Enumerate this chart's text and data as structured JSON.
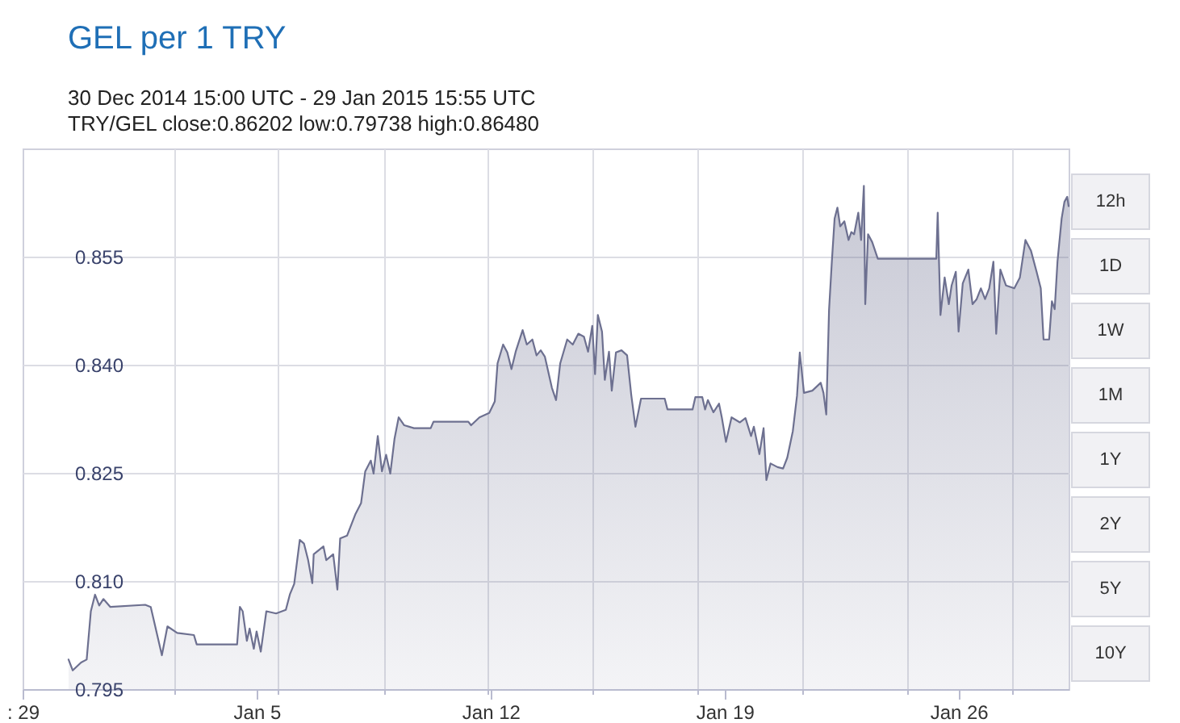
{
  "chart_data": {
    "type": "area",
    "title": "GEL per 1 TRY",
    "subtitle": "30 Dec 2014 15:00 UTC - 29 Jan 2015 15:55 UTC",
    "annotations": [
      "TRY/GEL close:0.86202 low:0.79738 high:0.86480",
      "12h",
      "1D",
      "1W",
      "1M",
      "1Y",
      "2Y",
      "5Y",
      "10Y"
    ],
    "x": [
      "2014-12-30T09:00",
      "2014-12-30T12:00",
      "2014-12-30T18:00",
      "2014-12-30T22:00",
      "2014-12-31T01:00",
      "2014-12-31T04:00",
      "2014-12-31T07:00",
      "2014-12-31T10:00",
      "2014-12-31T15:00",
      "2015-01-01T16:00",
      "2015-01-01T20:00",
      "2015-01-02T04:00",
      "2015-01-02T08:00",
      "2015-01-02T15:00",
      "2015-01-03T03:00",
      "2015-01-03T05:00",
      "2015-01-04T10:00",
      "2015-01-04T12:00",
      "2015-01-04T14:00",
      "2015-01-04T17:00",
      "2015-01-04T19:00",
      "2015-01-04T22:00",
      "2015-01-05T00:00",
      "2015-01-05T03:00",
      "2015-01-05T07:00",
      "2015-01-05T14:00",
      "2015-01-05T21:00",
      "2015-01-06T00:00",
      "2015-01-06T03:00",
      "2015-01-06T07:00",
      "2015-01-06T10:00",
      "2015-01-06T13:00",
      "2015-01-06T16:00",
      "2015-01-06T17:00",
      "2015-01-07T00:00",
      "2015-01-07T02:00",
      "2015-01-07T07:00",
      "2015-01-07T10:00",
      "2015-01-07T12:00",
      "2015-01-07T17:00",
      "2015-01-07T23:00",
      "2015-01-08T03:00",
      "2015-01-08T06:00",
      "2015-01-08T10:00",
      "2015-01-08T12:00",
      "2015-01-08T15:00",
      "2015-01-08T18:00",
      "2015-01-08T21:00",
      "2015-01-09T00:00",
      "2015-01-09T03:00",
      "2015-01-09T06:00",
      "2015-01-09T10:00",
      "2015-01-09T17:00",
      "2015-01-10T05:00",
      "2015-01-10T07:00",
      "2015-01-11T08:00",
      "2015-01-11T10:00",
      "2015-01-11T16:00",
      "2015-01-11T23:00",
      "2015-01-12T03:00",
      "2015-01-12T05:00",
      "2015-01-12T09:00",
      "2015-01-12T12:00",
      "2015-01-12T15:00",
      "2015-01-12T18:00",
      "2015-01-12T23:00",
      "2015-01-13T02:00",
      "2015-01-13T06:00",
      "2015-01-13T09:00",
      "2015-01-13T12:00",
      "2015-01-13T15:00",
      "2015-01-13T20:00",
      "2015-01-13T23:00",
      "2015-01-14T02:00",
      "2015-01-14T07:00",
      "2015-01-14T11:00",
      "2015-01-14T15:00",
      "2015-01-14T19:00",
      "2015-01-14T22:00",
      "2015-01-15T01:00",
      "2015-01-15T03:00",
      "2015-01-15T05:00",
      "2015-01-15T08:00",
      "2015-01-15T10:00",
      "2015-01-15T13:00",
      "2015-01-15T15:00",
      "2015-01-15T18:00",
      "2015-01-15T22:00",
      "2015-01-16T02:00",
      "2015-01-16T05:00",
      "2015-01-16T08:00",
      "2015-01-16T12:00",
      "2015-01-17T05:00",
      "2015-01-17T07:00",
      "2015-01-18T01:00",
      "2015-01-18T03:00",
      "2015-01-18T08:00",
      "2015-01-18T10:00",
      "2015-01-18T12:00",
      "2015-01-18T16:00",
      "2015-01-18T20:00",
      "2015-01-18T22:00",
      "2015-01-19T01:00",
      "2015-01-19T05:00",
      "2015-01-19T11:00",
      "2015-01-19T15:00",
      "2015-01-19T19:00",
      "2015-01-19T21:00",
      "2015-01-20T01:00",
      "2015-01-20T04:00",
      "2015-01-20T06:00",
      "2015-01-20T09:00",
      "2015-01-20T14:00",
      "2015-01-20T18:00",
      "2015-01-20T21:00",
      "2015-01-21T01:00",
      "2015-01-21T04:00",
      "2015-01-21T06:00",
      "2015-01-21T09:00",
      "2015-01-21T15:00",
      "2015-01-21T21:00",
      "2015-01-21T23:00",
      "2015-01-22T01:00",
      "2015-01-22T03:00",
      "2015-01-22T05:00",
      "2015-01-22T07:00",
      "2015-01-22T09:00",
      "2015-01-22T11:00",
      "2015-01-22T14:00",
      "2015-01-22T17:00",
      "2015-01-22T19:00",
      "2015-01-22T21:00",
      "2015-01-23T00:00",
      "2015-01-23T02:00",
      "2015-01-23T04:00",
      "2015-01-23T05:00",
      "2015-01-23T07:00",
      "2015-01-23T10:00",
      "2015-01-23T14:00",
      "2015-01-25T08:00",
      "2015-01-25T09:00",
      "2015-01-25T11:00",
      "2015-01-25T14:00",
      "2015-01-25T17:00",
      "2015-01-25T19:00",
      "2015-01-25T22:00",
      "2015-01-26T00:00",
      "2015-01-26T03:00",
      "2015-01-26T07:00",
      "2015-01-26T10:00",
      "2015-01-26T13:00",
      "2015-01-26T16:00",
      "2015-01-26T19:00",
      "2015-01-26T22:00",
      "2015-01-27T01:00",
      "2015-01-27T03:00",
      "2015-01-27T06:00",
      "2015-01-27T10:00",
      "2015-01-27T16:00",
      "2015-01-27T20:00",
      "2015-01-28T00:00",
      "2015-01-28T04:00",
      "2015-01-28T08:00",
      "2015-01-28T11:00",
      "2015-01-28T13:00",
      "2015-01-28T17:00",
      "2015-01-28T19:00",
      "2015-01-28T21:00",
      "2015-01-28T23:00",
      "2015-01-29T02:00",
      "2015-01-29T04:00",
      "2015-01-29T06:00",
      "2015-01-29T07:00"
    ],
    "series": [
      {
        "color": "#6d7090",
        "values": [
          0.7991,
          0.7976,
          0.7987,
          0.7991,
          0.8058,
          0.8081,
          0.8066,
          0.8075,
          0.8064,
          0.8067,
          0.8064,
          0.7997,
          0.8037,
          0.8028,
          0.8025,
          0.8012,
          0.8012,
          0.8064,
          0.8058,
          0.8017,
          0.8034,
          0.8006,
          0.803,
          0.8002,
          0.8058,
          0.8055,
          0.806,
          0.8082,
          0.8096,
          0.8157,
          0.8152,
          0.8129,
          0.8097,
          0.8137,
          0.8148,
          0.8129,
          0.8137,
          0.8088,
          0.8159,
          0.8163,
          0.8193,
          0.8208,
          0.8252,
          0.8267,
          0.8249,
          0.8301,
          0.8252,
          0.8275,
          0.8249,
          0.8297,
          0.8327,
          0.8316,
          0.8312,
          0.8312,
          0.8321,
          0.8321,
          0.8316,
          0.8327,
          0.8333,
          0.8349,
          0.8402,
          0.8428,
          0.8417,
          0.8394,
          0.8418,
          0.8448,
          0.8428,
          0.8435,
          0.8413,
          0.842,
          0.8411,
          0.8368,
          0.8351,
          0.8402,
          0.8435,
          0.8428,
          0.8443,
          0.8439,
          0.8418,
          0.8454,
          0.8387,
          0.8469,
          0.8446,
          0.8379,
          0.8418,
          0.8364,
          0.8417,
          0.842,
          0.8413,
          0.8358,
          0.8314,
          0.8353,
          0.8353,
          0.8338,
          0.8338,
          0.8355,
          0.8355,
          0.8338,
          0.8351,
          0.8334,
          0.8346,
          0.8327,
          0.8293,
          0.8327,
          0.832,
          0.8326,
          0.8301,
          0.8314,
          0.8276,
          0.8312,
          0.824,
          0.8263,
          0.8258,
          0.8256,
          0.8271,
          0.8308,
          0.8357,
          0.8417,
          0.8361,
          0.8364,
          0.8375,
          0.8361,
          0.8331,
          0.8476,
          0.8543,
          0.8603,
          0.8618,
          0.8592,
          0.8599,
          0.8573,
          0.8584,
          0.8581,
          0.8611,
          0.8573,
          0.8648,
          0.8484,
          0.8581,
          0.857,
          0.8547,
          0.8547,
          0.8611,
          0.8469,
          0.8521,
          0.8484,
          0.851,
          0.8529,
          0.8446,
          0.8513,
          0.8532,
          0.8484,
          0.8491,
          0.8506,
          0.8491,
          0.8506,
          0.8543,
          0.8443,
          0.8532,
          0.851,
          0.8506,
          0.8521,
          0.8573,
          0.8558,
          0.8529,
          0.8506,
          0.8435,
          0.8435,
          0.8488,
          0.8477,
          0.8543,
          0.8603,
          0.8626,
          0.8633,
          0.862
        ]
      }
    ],
    "xlim": [
      "2014-12-29T00:00",
      "2015-01-29T07:00"
    ],
    "xticks": [
      {
        "value": "2014-12-29",
        "label": ": 29"
      },
      {
        "value": "2015-01-02T13:00",
        "label": null
      },
      {
        "value": "2015-01-05",
        "label": "Jan 5"
      },
      {
        "value": "2015-01-05T15:00",
        "label": null
      },
      {
        "value": "2015-01-08T20:00",
        "label": null
      },
      {
        "value": "2015-01-11T22:00",
        "label": null
      },
      {
        "value": "2015-01-12",
        "label": "Jan 12"
      },
      {
        "value": "2015-01-15T01:00",
        "label": null
      },
      {
        "value": "2015-01-18T05:00",
        "label": null
      },
      {
        "value": "2015-01-19",
        "label": "Jan 19"
      },
      {
        "value": "2015-01-21T08:00",
        "label": null
      },
      {
        "value": "2015-01-24T11:00",
        "label": null
      },
      {
        "value": "2015-01-26",
        "label": "Jan 26"
      },
      {
        "value": "2015-01-27T15:00",
        "label": null
      }
    ],
    "ylim": [
      0.795,
      0.87
    ],
    "yticks": [
      0.795,
      {
        "value": 0.81,
        "label": "0.810"
      },
      0.825,
      {
        "value": 0.84,
        "label": "0.840"
      },
      0.855
    ],
    "grid": true
  }
}
